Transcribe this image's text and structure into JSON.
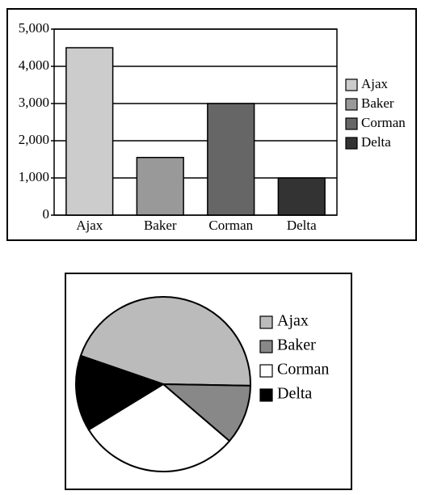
{
  "chart_data": [
    {
      "type": "bar",
      "categories": [
        "Ajax",
        "Baker",
        "Corman",
        "Delta"
      ],
      "series": [
        {
          "name": "Ajax",
          "color": "#cccccc",
          "values": [
            4500,
            null,
            null,
            null
          ]
        },
        {
          "name": "Baker",
          "color": "#999999",
          "values": [
            null,
            1550,
            null,
            null
          ]
        },
        {
          "name": "Corman",
          "color": "#666666",
          "values": [
            null,
            null,
            3000,
            null
          ]
        },
        {
          "name": "Delta",
          "color": "#333333",
          "values": [
            null,
            null,
            null,
            1000
          ]
        }
      ],
      "ylim": [
        0,
        5000
      ],
      "yticks": [
        0,
        {
          "value": 1000,
          "label": "1,000"
        },
        {
          "value": 2000,
          "label": "2,000"
        },
        {
          "value": 3000,
          "label": "3,000"
        },
        {
          "value": 4000,
          "label": "4,000"
        },
        {
          "value": 5000,
          "label": "5,000"
        }
      ],
      "grid": true,
      "legend": "right"
    },
    {
      "type": "pie",
      "categories": [
        "Ajax",
        "Baker",
        "Corman",
        "Delta"
      ],
      "values": [
        45,
        11,
        30,
        14
      ],
      "colors": [
        "#bbbbbb",
        "#888888",
        "#ffffff",
        "#000000"
      ],
      "legend": "right"
    }
  ]
}
